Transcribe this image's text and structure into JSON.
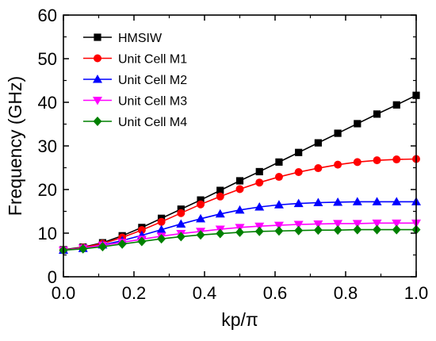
{
  "chart_data": {
    "type": "line",
    "title": "",
    "xlabel": "kp/π",
    "ylabel": "Frequency (GHz)",
    "xlim": [
      0.0,
      1.0
    ],
    "ylim": [
      0,
      60
    ],
    "xticks": [
      "0.0",
      "0.2",
      "0.4",
      "0.6",
      "0.8",
      "1.0"
    ],
    "yticks": [
      "0",
      "10",
      "20",
      "30",
      "40",
      "50",
      "60"
    ],
    "grid": false,
    "legend_position": "top-left",
    "x": [
      0.0,
      0.0556,
      0.1111,
      0.1667,
      0.2222,
      0.2778,
      0.3333,
      0.3889,
      0.4444,
      0.5,
      0.5556,
      0.6111,
      0.6667,
      0.7222,
      0.7778,
      0.8333,
      0.8889,
      0.9444,
      1.0
    ],
    "series": [
      {
        "name": "HMSIW",
        "color": "#000000",
        "marker": "square",
        "values": [
          6.2,
          6.8,
          7.8,
          9.4,
          11.3,
          13.4,
          15.5,
          17.6,
          19.8,
          22.0,
          24.1,
          26.3,
          28.5,
          30.7,
          32.9,
          35.1,
          37.3,
          39.4,
          41.6
        ]
      },
      {
        "name": "Unit Cell M1",
        "color": "#ff0000",
        "marker": "circle",
        "values": [
          6.1,
          6.7,
          7.6,
          9.0,
          10.7,
          12.6,
          14.6,
          16.6,
          18.4,
          20.1,
          21.6,
          22.9,
          24.0,
          24.9,
          25.7,
          26.3,
          26.7,
          26.9,
          27.0
        ]
      },
      {
        "name": "Unit Cell M2",
        "color": "#0000ff",
        "marker": "triangle-up",
        "values": [
          6.1,
          6.5,
          7.3,
          8.3,
          9.5,
          10.8,
          12.1,
          13.3,
          14.4,
          15.3,
          16.0,
          16.5,
          16.8,
          17.0,
          17.1,
          17.2,
          17.2,
          17.2,
          17.2
        ]
      },
      {
        "name": "Unit Cell M3",
        "color": "#ff00ff",
        "marker": "triangle-down",
        "values": [
          6.1,
          6.6,
          7.2,
          7.9,
          8.6,
          9.3,
          9.9,
          10.4,
          10.9,
          11.3,
          11.6,
          11.8,
          12.0,
          12.1,
          12.2,
          12.2,
          12.3,
          12.3,
          12.3
        ]
      },
      {
        "name": "Unit Cell M4",
        "color": "#008000",
        "marker": "diamond",
        "values": [
          6.1,
          6.4,
          6.9,
          7.5,
          8.1,
          8.7,
          9.2,
          9.6,
          9.9,
          10.2,
          10.4,
          10.5,
          10.6,
          10.7,
          10.7,
          10.8,
          10.8,
          10.8,
          10.8
        ]
      }
    ]
  }
}
